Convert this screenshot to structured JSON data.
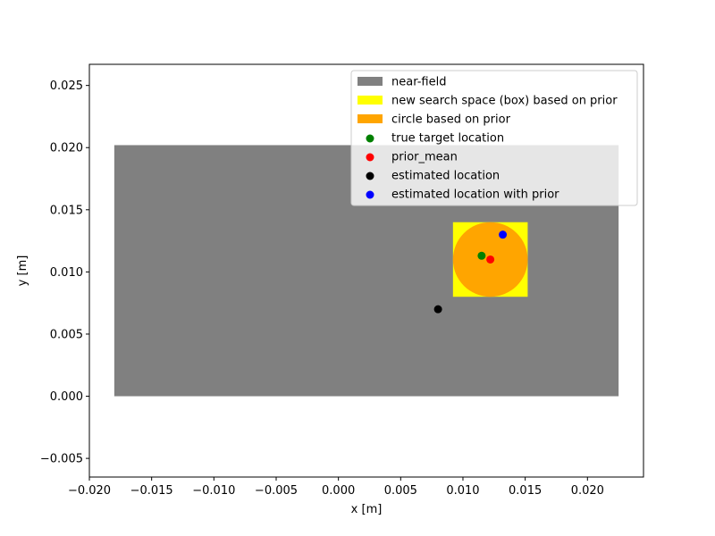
{
  "chart_data": {
    "type": "scatter",
    "xlabel": "x [m]",
    "ylabel": "y [m]",
    "xlim": [
      -0.02,
      0.0245
    ],
    "ylim": [
      -0.0065,
      0.0267
    ],
    "xticks": [
      -0.02,
      -0.015,
      -0.01,
      -0.005,
      0.0,
      0.005,
      0.01,
      0.015,
      0.02
    ],
    "xtick_labels": [
      "−0.020",
      "−0.015",
      "−0.010",
      "−0.005",
      "0.000",
      "0.005",
      "0.010",
      "0.015",
      "0.020"
    ],
    "yticks": [
      -0.005,
      0.0,
      0.005,
      0.01,
      0.015,
      0.02,
      0.025
    ],
    "ytick_labels": [
      "−0.005",
      "0.000",
      "0.005",
      "0.010",
      "0.015",
      "0.020",
      "0.025"
    ],
    "grid": false,
    "legend_position": "upper right",
    "near_field": {
      "x": [
        -0.018,
        0.0225
      ],
      "y": [
        0.0,
        0.0202
      ],
      "color": "#808080"
    },
    "search_box": {
      "x": [
        0.0092,
        0.0152
      ],
      "y": [
        0.008,
        0.014
      ],
      "color": "#ffff00"
    },
    "prior_circle": {
      "center": [
        0.0122,
        0.011
      ],
      "radius": 0.003,
      "color": "#ffa500"
    },
    "points": [
      {
        "name": "true target location",
        "x": 0.0115,
        "y": 0.0113,
        "color": "#008000"
      },
      {
        "name": "prior_mean",
        "x": 0.0122,
        "y": 0.011,
        "color": "#ff0000"
      },
      {
        "name": "estimated location",
        "x": 0.008,
        "y": 0.007,
        "color": "#000000"
      },
      {
        "name": "estimated location with prior",
        "x": 0.0132,
        "y": 0.013,
        "color": "#0000ff"
      }
    ],
    "legend": [
      {
        "label": "near-field",
        "kind": "patch",
        "color": "#808080"
      },
      {
        "label": "new search space (box) based on prior",
        "kind": "patch",
        "color": "#ffff00"
      },
      {
        "label": "circle based on prior",
        "kind": "patch",
        "color": "#ffa500"
      },
      {
        "label": "true target location",
        "kind": "marker",
        "color": "#008000"
      },
      {
        "label": "prior_mean",
        "kind": "marker",
        "color": "#ff0000"
      },
      {
        "label": "estimated location",
        "kind": "marker",
        "color": "#000000"
      },
      {
        "label": "estimated location with prior",
        "kind": "marker",
        "color": "#0000ff"
      }
    ]
  }
}
